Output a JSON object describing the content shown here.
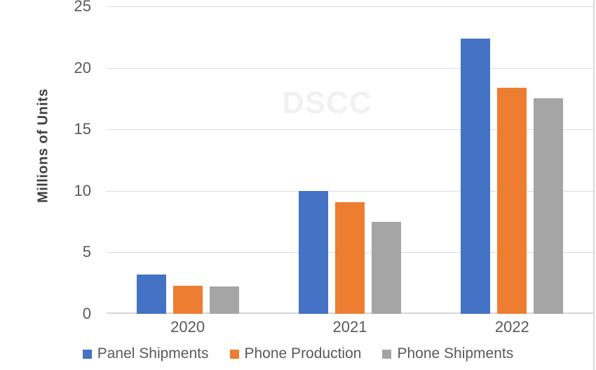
{
  "chart_data": {
    "type": "bar",
    "title": "",
    "ylabel": "Millions of Units",
    "xlabel": "",
    "categories": [
      "2020",
      "2021",
      "2022"
    ],
    "series": [
      {
        "name": "Panel Shipments",
        "color": "#4472C4",
        "values": [
          3.2,
          10.0,
          22.4
        ]
      },
      {
        "name": "Phone Production",
        "color": "#ED7D31",
        "values": [
          2.3,
          9.1,
          18.4
        ]
      },
      {
        "name": "Phone Shipments",
        "color": "#A5A5A5",
        "values": [
          2.2,
          7.5,
          17.5
        ]
      }
    ],
    "ylim": [
      0,
      25
    ],
    "ytick_step": 5,
    "yticks": [
      0,
      5,
      10,
      15,
      20,
      25
    ],
    "grid": true,
    "legend_position": "bottom",
    "watermark": "DSCC",
    "colors": {
      "grid": "#dcdcdc",
      "axis_text": "#595959",
      "axis_title_text": "#404040",
      "watermark_text": "#f1f1f1"
    }
  }
}
